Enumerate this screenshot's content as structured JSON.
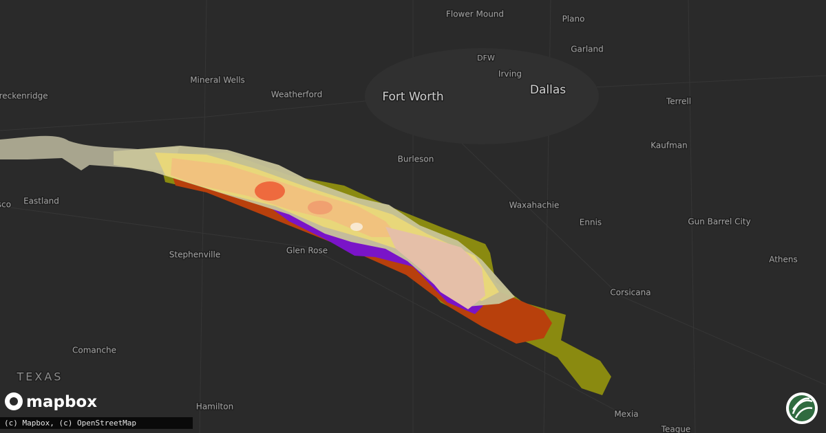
{
  "labels": [
    "Flower Mound",
    "Plano",
    "Garland",
    "DFW",
    "Irving",
    "Fort Worth",
    "Dallas",
    "Mineral Wells",
    "Weatherford",
    "Breckenridge",
    "Terrell",
    "Kaufman",
    "Burleson",
    "Waxahachie",
    "Ennis",
    "Gun Barrel City",
    "Athens",
    "Eastland",
    "sco",
    "Stephenville",
    "Glen Rose",
    "Corsicana",
    "Comanche",
    "Hamilton",
    "Mexia",
    "Teague"
  ],
  "region_label": "TEXAS",
  "logo": "mapbox",
  "attribution": "(c) Mapbox, (c) OpenStreetMap"
}
